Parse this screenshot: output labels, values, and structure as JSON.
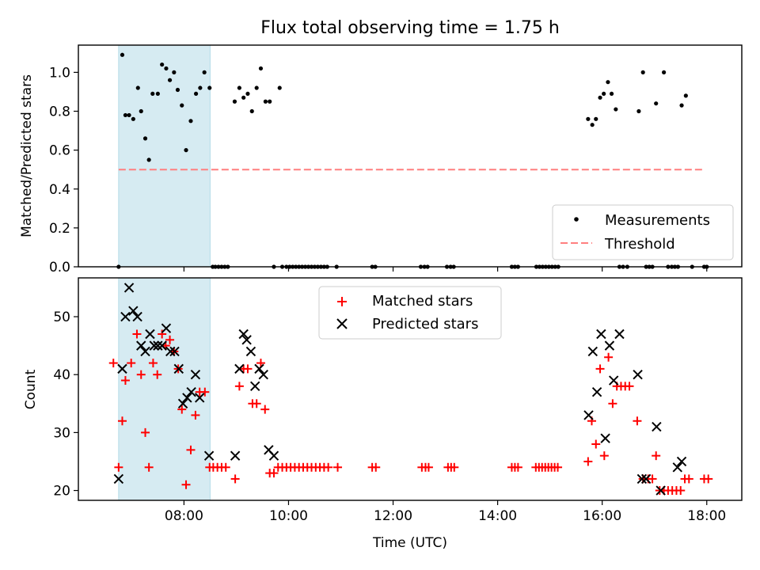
{
  "title": "Flux total observing time = 1.75 h",
  "chart_data": [
    {
      "type": "scatter",
      "ylabel": "Matched/Predicted stars",
      "xlim": [
        5.98,
        18.67
      ],
      "ylim": [
        0,
        1.14
      ],
      "yticks": [
        0.0,
        0.2,
        0.4,
        0.6,
        0.8,
        1.0
      ],
      "ytick_labels": [
        "0.0",
        "0.2",
        "0.4",
        "0.6",
        "0.8",
        "1.0"
      ],
      "xticks": [
        8,
        10,
        12,
        14,
        16,
        18
      ],
      "shaded_span": [
        6.75,
        8.5
      ],
      "threshold": {
        "y": 0.5,
        "x_range": [
          6.75,
          17.95
        ],
        "color": "#ff7f7f"
      },
      "legend": {
        "location": "lower right",
        "entries": [
          "Measurements",
          "Threshold"
        ]
      },
      "series": [
        {
          "name": "Measurements",
          "marker": "dot",
          "color": "#000000",
          "points": [
            [
              6.75,
              0
            ],
            [
              6.82,
              1.09
            ],
            [
              6.88,
              0.78
            ],
            [
              6.95,
              0.78
            ],
            [
              7.03,
              0.76
            ],
            [
              7.12,
              0.92
            ],
            [
              7.18,
              0.8
            ],
            [
              7.26,
              0.66
            ],
            [
              7.33,
              0.55
            ],
            [
              7.4,
              0.89
            ],
            [
              7.5,
              0.89
            ],
            [
              7.58,
              1.04
            ],
            [
              7.66,
              1.02
            ],
            [
              7.73,
              0.96
            ],
            [
              7.81,
              1.0
            ],
            [
              7.88,
              0.91
            ],
            [
              7.96,
              0.83
            ],
            [
              8.04,
              0.6
            ],
            [
              8.13,
              0.75
            ],
            [
              8.23,
              0.89
            ],
            [
              8.31,
              0.92
            ],
            [
              8.39,
              1.0
            ],
            [
              8.49,
              0.92
            ],
            [
              8.55,
              0
            ],
            [
              8.6,
              0
            ],
            [
              8.66,
              0
            ],
            [
              8.72,
              0
            ],
            [
              8.78,
              0
            ],
            [
              8.84,
              0
            ],
            [
              8.97,
              0.85
            ],
            [
              9.06,
              0.92
            ],
            [
              9.14,
              0.87
            ],
            [
              9.22,
              0.89
            ],
            [
              9.3,
              0.8
            ],
            [
              9.39,
              0.92
            ],
            [
              9.47,
              1.02
            ],
            [
              9.56,
              0.85
            ],
            [
              9.64,
              0.85
            ],
            [
              9.72,
              0
            ],
            [
              9.83,
              0.92
            ],
            [
              9.88,
              0
            ],
            [
              9.96,
              0
            ],
            [
              10.02,
              0
            ],
            [
              10.08,
              0
            ],
            [
              10.14,
              0
            ],
            [
              10.2,
              0
            ],
            [
              10.26,
              0
            ],
            [
              10.32,
              0
            ],
            [
              10.38,
              0
            ],
            [
              10.44,
              0
            ],
            [
              10.5,
              0
            ],
            [
              10.56,
              0
            ],
            [
              10.62,
              0
            ],
            [
              10.68,
              0
            ],
            [
              10.74,
              0
            ],
            [
              10.92,
              0
            ],
            [
              11.6,
              0
            ],
            [
              11.66,
              0
            ],
            [
              12.53,
              0
            ],
            [
              12.6,
              0
            ],
            [
              12.66,
              0
            ],
            [
              13.03,
              0
            ],
            [
              13.1,
              0
            ],
            [
              13.16,
              0
            ],
            [
              14.27,
              0
            ],
            [
              14.33,
              0
            ],
            [
              14.39,
              0
            ],
            [
              14.74,
              0
            ],
            [
              14.8,
              0
            ],
            [
              14.86,
              0
            ],
            [
              14.92,
              0
            ],
            [
              14.98,
              0
            ],
            [
              15.04,
              0
            ],
            [
              15.1,
              0
            ],
            [
              15.16,
              0
            ],
            [
              15.73,
              0.76
            ],
            [
              15.81,
              0.73
            ],
            [
              15.88,
              0.76
            ],
            [
              15.96,
              0.87
            ],
            [
              16.03,
              0.89
            ],
            [
              16.11,
              0.95
            ],
            [
              16.18,
              0.89
            ],
            [
              16.26,
              0.81
            ],
            [
              16.33,
              0
            ],
            [
              16.4,
              0
            ],
            [
              16.48,
              0
            ],
            [
              16.7,
              0.8
            ],
            [
              16.78,
              1.0
            ],
            [
              16.84,
              0
            ],
            [
              16.9,
              0
            ],
            [
              16.96,
              0
            ],
            [
              17.03,
              0.84
            ],
            [
              17.18,
              1.0
            ],
            [
              17.26,
              0
            ],
            [
              17.33,
              0
            ],
            [
              17.39,
              0
            ],
            [
              17.45,
              0
            ],
            [
              17.52,
              0.83
            ],
            [
              17.6,
              0.88
            ],
            [
              17.72,
              0
            ],
            [
              17.95,
              0
            ],
            [
              18.0,
              0
            ]
          ]
        }
      ]
    },
    {
      "type": "scatter",
      "ylabel": "Count",
      "xlabel": "Time (UTC)",
      "xlim": [
        5.98,
        18.67
      ],
      "ylim": [
        18.3,
        56.7
      ],
      "yticks": [
        20,
        30,
        40,
        50
      ],
      "ytick_labels": [
        "20",
        "30",
        "40",
        "50"
      ],
      "xticks": [
        8,
        10,
        12,
        14,
        16,
        18
      ],
      "xtick_labels": [
        "08:00",
        "10:00",
        "12:00",
        "14:00",
        "16:00",
        "18:00"
      ],
      "shaded_span": [
        6.75,
        8.5
      ],
      "legend": {
        "location": "upper center",
        "entries": [
          "Matched stars",
          "Predicted stars"
        ]
      },
      "series": [
        {
          "name": "Matched stars",
          "marker": "plus",
          "color": "#ff0000",
          "points": [
            [
              6.65,
              42
            ],
            [
              6.75,
              24
            ],
            [
              6.82,
              32
            ],
            [
              6.88,
              39
            ],
            [
              6.99,
              42
            ],
            [
              7.1,
              47
            ],
            [
              7.18,
              40
            ],
            [
              7.26,
              30
            ],
            [
              7.33,
              24
            ],
            [
              7.41,
              42
            ],
            [
              7.49,
              40
            ],
            [
              7.58,
              47
            ],
            [
              7.65,
              45
            ],
            [
              7.73,
              46
            ],
            [
              7.81,
              44
            ],
            [
              7.89,
              41
            ],
            [
              7.96,
              34
            ],
            [
              8.04,
              21
            ],
            [
              8.13,
              27
            ],
            [
              8.22,
              33
            ],
            [
              8.3,
              37
            ],
            [
              8.4,
              37
            ],
            [
              8.49,
              24
            ],
            [
              8.56,
              24
            ],
            [
              8.64,
              24
            ],
            [
              8.72,
              24
            ],
            [
              8.8,
              24
            ],
            [
              8.98,
              22
            ],
            [
              9.06,
              38
            ],
            [
              9.14,
              41
            ],
            [
              9.22,
              41
            ],
            [
              9.31,
              35
            ],
            [
              9.39,
              35
            ],
            [
              9.47,
              42
            ],
            [
              9.55,
              34
            ],
            [
              9.64,
              23
            ],
            [
              9.72,
              23
            ],
            [
              9.8,
              24
            ],
            [
              9.88,
              24
            ],
            [
              9.96,
              24
            ],
            [
              10.04,
              24
            ],
            [
              10.12,
              24
            ],
            [
              10.2,
              24
            ],
            [
              10.28,
              24
            ],
            [
              10.36,
              24
            ],
            [
              10.44,
              24
            ],
            [
              10.52,
              24
            ],
            [
              10.6,
              24
            ],
            [
              10.68,
              24
            ],
            [
              10.76,
              24
            ],
            [
              10.94,
              24
            ],
            [
              11.6,
              24
            ],
            [
              11.67,
              24
            ],
            [
              12.55,
              24
            ],
            [
              12.62,
              24
            ],
            [
              12.68,
              24
            ],
            [
              13.05,
              24
            ],
            [
              13.11,
              24
            ],
            [
              13.17,
              24
            ],
            [
              14.27,
              24
            ],
            [
              14.33,
              24
            ],
            [
              14.39,
              24
            ],
            [
              14.73,
              24
            ],
            [
              14.79,
              24
            ],
            [
              14.85,
              24
            ],
            [
              14.91,
              24
            ],
            [
              14.97,
              24
            ],
            [
              15.03,
              24
            ],
            [
              15.09,
              24
            ],
            [
              15.15,
              24
            ],
            [
              15.73,
              25
            ],
            [
              15.8,
              32
            ],
            [
              15.88,
              28
            ],
            [
              15.96,
              41
            ],
            [
              16.04,
              26
            ],
            [
              16.12,
              43
            ],
            [
              16.2,
              35
            ],
            [
              16.28,
              38
            ],
            [
              16.36,
              38
            ],
            [
              16.44,
              38
            ],
            [
              16.52,
              38
            ],
            [
              16.67,
              32
            ],
            [
              16.78,
              22
            ],
            [
              16.88,
              22
            ],
            [
              16.96,
              22
            ],
            [
              17.03,
              26
            ],
            [
              17.1,
              20
            ],
            [
              17.18,
              20
            ],
            [
              17.26,
              20
            ],
            [
              17.34,
              20
            ],
            [
              17.42,
              20
            ],
            [
              17.5,
              20
            ],
            [
              17.58,
              22
            ],
            [
              17.66,
              22
            ],
            [
              17.95,
              22
            ],
            [
              18.03,
              22
            ]
          ]
        },
        {
          "name": "Predicted stars",
          "marker": "x",
          "color": "#000000",
          "points": [
            [
              6.75,
              22
            ],
            [
              6.82,
              41
            ],
            [
              6.88,
              50
            ],
            [
              6.95,
              55
            ],
            [
              7.03,
              51
            ],
            [
              7.11,
              50
            ],
            [
              7.18,
              45
            ],
            [
              7.26,
              44
            ],
            [
              7.35,
              47
            ],
            [
              7.43,
              45
            ],
            [
              7.5,
              45
            ],
            [
              7.58,
              45
            ],
            [
              7.66,
              48
            ],
            [
              7.74,
              44
            ],
            [
              7.82,
              44
            ],
            [
              7.9,
              41
            ],
            [
              7.98,
              35
            ],
            [
              8.06,
              36
            ],
            [
              8.14,
              37
            ],
            [
              8.22,
              40
            ],
            [
              8.3,
              36
            ],
            [
              8.48,
              26
            ],
            [
              8.98,
              26
            ],
            [
              9.06,
              41
            ],
            [
              9.14,
              47
            ],
            [
              9.2,
              46
            ],
            [
              9.28,
              44
            ],
            [
              9.36,
              38
            ],
            [
              9.44,
              41
            ],
            [
              9.52,
              40
            ],
            [
              9.62,
              27
            ],
            [
              9.72,
              26
            ],
            [
              15.74,
              33
            ],
            [
              15.82,
              44
            ],
            [
              15.9,
              37
            ],
            [
              15.98,
              47
            ],
            [
              16.06,
              29
            ],
            [
              16.14,
              45
            ],
            [
              16.22,
              39
            ],
            [
              16.33,
              47
            ],
            [
              16.68,
              40
            ],
            [
              16.76,
              22
            ],
            [
              16.84,
              22
            ],
            [
              17.04,
              31
            ],
            [
              17.12,
              20
            ],
            [
              17.44,
              24
            ],
            [
              17.52,
              25
            ]
          ]
        }
      ]
    }
  ]
}
